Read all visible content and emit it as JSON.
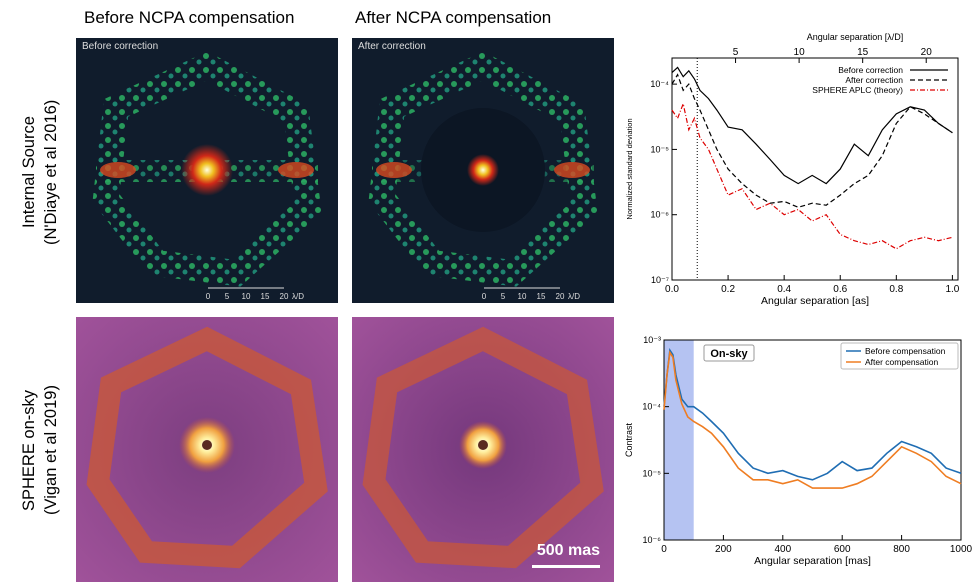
{
  "column_titles": [
    "Before NCPA compensation",
    "After NCPA compensation"
  ],
  "row_labels": [
    {
      "line1": "Internal Source",
      "line2": "(N'Diaye et al 2016)"
    },
    {
      "line1": "SPHERE on-sky",
      "line2": "(Vigan et al 2019)"
    }
  ],
  "image_captions": {
    "before": "Before correction",
    "after": "After correction"
  },
  "lab_scalebar_ticks": [
    "0",
    "5",
    "10",
    "15",
    "20"
  ],
  "lab_scalebar_unit": "λ/D",
  "sky_scalebar_label": "500 mas",
  "colors": {
    "lab_bg": "#101c2c",
    "sky_bg": "#6e3c83",
    "sky_ring": "#c8573a",
    "sky_core": "#fff0a0"
  },
  "chart_data": [
    {
      "type": "line",
      "xlabel": "Angular separation [as]",
      "ylabel": "Normalized standard deviation",
      "top_xlabel": "Angular separation [λ/D]",
      "top_ticks": [
        5,
        10,
        15,
        20
      ],
      "xticks": [
        "0.0",
        "0.2",
        "0.4",
        "0.6",
        "0.8",
        "1.0"
      ],
      "yticks": [
        "10⁻⁷",
        "10⁻⁶",
        "10⁻⁵",
        "10⁻⁴"
      ],
      "xlim": [
        0,
        1.02
      ],
      "ylim_log10": [
        -7,
        -3.6
      ],
      "vline_x": 0.09,
      "legend_position": "top-right",
      "series": [
        {
          "name": "Before correction",
          "color": "#000000",
          "dash": "solid",
          "x": [
            0,
            0.02,
            0.04,
            0.06,
            0.08,
            0.1,
            0.13,
            0.16,
            0.2,
            0.25,
            0.3,
            0.35,
            0.4,
            0.45,
            0.5,
            0.55,
            0.6,
            0.65,
            0.7,
            0.75,
            0.8,
            0.85,
            0.9,
            0.95,
            1.0
          ],
          "y": [
            0.00015,
            0.00018,
            0.00013,
            0.00016,
            0.00012,
            8e-05,
            6e-05,
            4e-05,
            2.2e-05,
            2e-05,
            1.2e-05,
            7e-06,
            4e-06,
            3e-06,
            4e-06,
            3e-06,
            5e-06,
            1.2e-05,
            8e-06,
            2e-05,
            3.5e-05,
            4.5e-05,
            4e-05,
            2.5e-05,
            1.8e-05
          ]
        },
        {
          "name": "After correction",
          "color": "#000000",
          "dash": "dashed",
          "x": [
            0,
            0.02,
            0.04,
            0.06,
            0.08,
            0.1,
            0.13,
            0.16,
            0.2,
            0.25,
            0.3,
            0.35,
            0.4,
            0.45,
            0.5,
            0.55,
            0.6,
            0.65,
            0.7,
            0.75,
            0.8,
            0.85,
            0.9,
            0.95,
            1.0
          ],
          "y": [
            0.0001,
            0.00014,
            8e-05,
            0.0001,
            6e-05,
            4e-05,
            2e-05,
            1e-05,
            5e-06,
            3e-06,
            2e-06,
            1.5e-06,
            1.6e-06,
            1.3e-06,
            1.5e-06,
            1.4e-06,
            2e-06,
            3e-06,
            4e-06,
            8e-06,
            2.5e-05,
            4.5e-05,
            3.5e-05,
            2.5e-05,
            1.8e-05
          ]
        },
        {
          "name": "SPHERE APLC (theory)",
          "color": "#dd0000",
          "dash": "dashdot",
          "x": [
            0,
            0.02,
            0.04,
            0.06,
            0.08,
            0.1,
            0.13,
            0.16,
            0.2,
            0.25,
            0.3,
            0.35,
            0.4,
            0.45,
            0.5,
            0.55,
            0.6,
            0.65,
            0.7,
            0.75,
            0.8,
            0.85,
            0.9,
            0.95,
            1.0
          ],
          "y": [
            4e-05,
            3e-05,
            5e-05,
            2e-05,
            3e-05,
            1.5e-05,
            1e-05,
            5e-06,
            2e-06,
            2.5e-06,
            1.2e-06,
            1.5e-06,
            1e-06,
            1.2e-06,
            8e-07,
            1e-06,
            5e-07,
            4e-07,
            3.5e-07,
            4e-07,
            3e-07,
            4e-07,
            4.5e-07,
            4e-07,
            4.5e-07
          ]
        }
      ]
    },
    {
      "type": "line",
      "annotation": "On-sky",
      "xlabel": "Angular separation [mas]",
      "ylabel": "Contrast",
      "xticks": [
        "0",
        "200",
        "400",
        "600",
        "800",
        "1000"
      ],
      "yticks": [
        "10⁻⁶",
        "10⁻⁵",
        "10⁻⁴",
        "10⁻³"
      ],
      "xlim": [
        0,
        1000
      ],
      "ylim_log10": [
        -6,
        -3
      ],
      "shaded_region_x": [
        0,
        100
      ],
      "legend_position": "top-right",
      "series": [
        {
          "name": "Before compensation",
          "color": "#1f6db3",
          "x": [
            0,
            10,
            20,
            30,
            40,
            60,
            80,
            100,
            130,
            160,
            200,
            250,
            300,
            350,
            400,
            450,
            500,
            550,
            600,
            650,
            700,
            750,
            800,
            850,
            900,
            950,
            1000
          ],
          "y": [
            0.0001,
            0.0003,
            0.0007,
            0.0006,
            0.0003,
            0.00013,
            0.0001,
            0.0001,
            8e-05,
            6e-05,
            4e-05,
            2e-05,
            1.2e-05,
            1e-05,
            1.1e-05,
            9e-06,
            8e-06,
            1e-05,
            1.5e-05,
            1.1e-05,
            1.2e-05,
            2e-05,
            3e-05,
            2.5e-05,
            2e-05,
            1.2e-05,
            1e-05
          ]
        },
        {
          "name": "After compensation",
          "color": "#ef7d22",
          "x": [
            0,
            10,
            20,
            30,
            40,
            60,
            80,
            100,
            130,
            160,
            200,
            250,
            300,
            350,
            400,
            450,
            500,
            550,
            600,
            650,
            700,
            750,
            800,
            850,
            900,
            950,
            1000
          ],
          "y": [
            9e-05,
            0.0003,
            0.00065,
            0.00055,
            0.00025,
            0.00011,
            7e-05,
            6e-05,
            5e-05,
            4e-05,
            2.5e-05,
            1.2e-05,
            8e-06,
            8e-06,
            7e-06,
            8e-06,
            6e-06,
            6e-06,
            6e-06,
            7e-06,
            9e-06,
            1.5e-05,
            2.5e-05,
            2e-05,
            1.5e-05,
            9e-06,
            7e-06
          ]
        }
      ]
    }
  ]
}
